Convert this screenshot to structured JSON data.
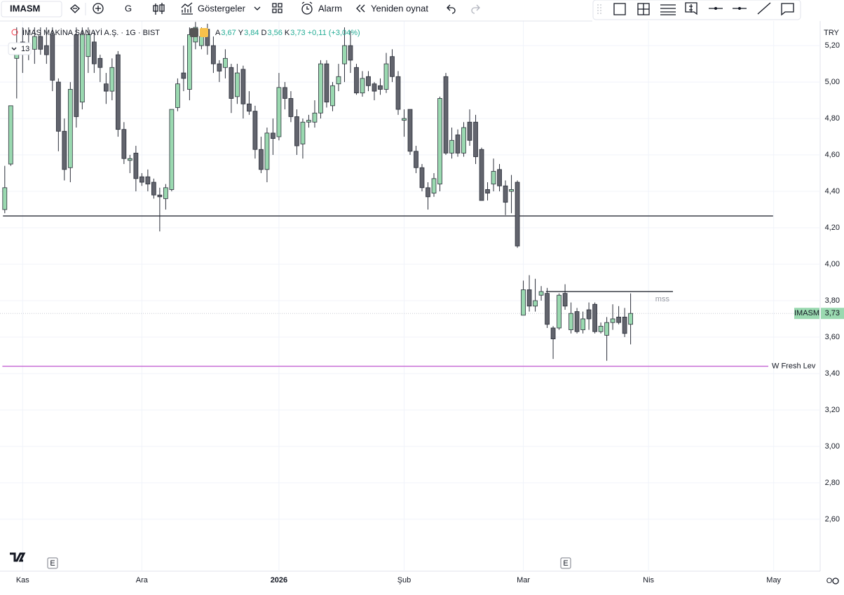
{
  "toolbar": {
    "symbol": "IMASM",
    "interval": "G",
    "indicators": "Göstergeler",
    "alarm": "Alarm",
    "replay": "Yeniden oynat"
  },
  "legend": {
    "title": "İMAŞ MAKİNA SANAYİ A.Ş. · 1G · BIST",
    "items": [
      {
        "key": "A",
        "value": "3,67"
      },
      {
        "key": "Y",
        "value": "3,84"
      },
      {
        "key": "D",
        "value": "3,56"
      },
      {
        "key": "K",
        "value": "3,73"
      }
    ],
    "change": "+0,11 (+3,04%)",
    "badge": "13"
  },
  "currency": "TRY",
  "events": [
    "E",
    "E"
  ],
  "scale_button": "O",
  "chart_data": {
    "type": "candlestick",
    "up_color": "#9ad9b0",
    "down_color": "#62646d",
    "border_color": "#2a2e39",
    "open": [
      4.3,
      4.55,
      5.13,
      5.22,
      5.2,
      5.18,
      5.25,
      5.2,
      5.26,
      5.0,
      4.73,
      4.53,
      5.26,
      4.89,
      5.14,
      5.22,
      5.13,
      4.99,
      4.95,
      5.15,
      4.74,
      4.57,
      4.61,
      4.48,
      4.48,
      4.45,
      4.38,
      4.36,
      4.41,
      4.86,
      5.05,
      4.96,
      5.22,
      5.2,
      5.29,
      5.2,
      5.1,
      5.08,
      5.08,
      4.92,
      5.07,
      4.88,
      4.84,
      4.63,
      4.52,
      4.72,
      4.7,
      4.97,
      4.91,
      4.81,
      4.66,
      4.78,
      4.78,
      4.83,
      5.1,
      4.87,
      4.99,
      5.1,
      5.2,
      5.08,
      4.94,
      5.03,
      4.99,
      4.98,
      4.96,
      5.14,
      5.03,
      4.79,
      4.85,
      4.62,
      4.53,
      4.42,
      4.39,
      4.44,
      5.03,
      4.61,
      4.71,
      4.61,
      4.78,
      4.78,
      4.63,
      4.41,
      4.44,
      4.52,
      4.43,
      4.4,
      4.45,
      3.72,
      3.86,
      3.77,
      3.83,
      3.84,
      3.65,
      3.65,
      3.84,
      3.64,
      3.74,
      3.64,
      3.75,
      3.78,
      3.63,
      3.61,
      3.68,
      3.71,
      3.71,
      3.67
    ],
    "high": [
      4.54,
      4.87,
      5.3,
      5.3,
      5.3,
      5.3,
      5.3,
      5.3,
      5.3,
      5.02,
      4.8,
      5.0,
      5.3,
      5.3,
      5.3,
      5.28,
      5.15,
      5.05,
      5.13,
      5.17,
      4.78,
      4.6,
      4.65,
      4.5,
      4.52,
      4.47,
      4.42,
      4.44,
      4.85,
      5.02,
      5.2,
      5.3,
      5.33,
      5.3,
      5.32,
      5.25,
      5.12,
      5.18,
      5.1,
      5.1,
      5.09,
      4.95,
      4.87,
      4.7,
      4.75,
      4.8,
      5.05,
      5.0,
      4.95,
      4.85,
      4.8,
      4.82,
      4.9,
      5.12,
      5.12,
      5.0,
      5.1,
      5.3,
      5.28,
      5.1,
      5.06,
      5.06,
      5.0,
      5.02,
      5.16,
      5.18,
      5.06,
      4.85,
      4.85,
      4.65,
      4.55,
      4.45,
      4.5,
      4.92,
      5.05,
      4.75,
      4.74,
      4.78,
      4.85,
      4.82,
      4.64,
      4.45,
      4.58,
      4.55,
      4.46,
      4.49,
      4.46,
      3.91,
      3.94,
      3.92,
      3.88,
      3.87,
      3.66,
      3.84,
      3.89,
      3.79,
      3.76,
      3.74,
      3.79,
      3.79,
      3.68,
      3.71,
      3.78,
      3.77,
      3.76,
      3.84
    ],
    "low": [
      4.28,
      4.54,
      4.91,
      5.05,
      5.12,
      5.1,
      5.15,
      5.1,
      4.95,
      4.62,
      4.46,
      4.45,
      4.75,
      4.85,
      5.05,
      5.05,
      5.0,
      4.88,
      4.9,
      4.7,
      4.55,
      4.5,
      4.4,
      4.43,
      4.4,
      4.36,
      4.18,
      4.3,
      4.4,
      4.84,
      4.95,
      4.9,
      5.18,
      5.18,
      5.15,
      5.05,
      5.0,
      5.02,
      4.83,
      4.88,
      4.8,
      4.82,
      4.58,
      4.5,
      4.45,
      4.6,
      4.68,
      4.85,
      4.78,
      4.6,
      4.58,
      4.75,
      4.75,
      4.8,
      4.86,
      4.84,
      4.95,
      5.0,
      5.05,
      4.93,
      4.92,
      4.95,
      4.9,
      4.93,
      4.94,
      5.0,
      4.82,
      4.7,
      4.6,
      4.5,
      4.4,
      4.3,
      4.37,
      4.4,
      4.6,
      4.58,
      4.59,
      4.59,
      4.65,
      4.55,
      4.35,
      4.35,
      4.4,
      4.4,
      4.27,
      4.28,
      4.09,
      3.72,
      3.74,
      3.74,
      3.8,
      3.65,
      3.48,
      3.64,
      3.75,
      3.62,
      3.62,
      3.62,
      3.64,
      3.62,
      3.62,
      3.47,
      3.64,
      3.67,
      3.6,
      3.56
    ],
    "close": [
      4.42,
      4.87,
      5.19,
      5.15,
      5.18,
      5.25,
      5.18,
      5.15,
      5.01,
      4.73,
      4.52,
      4.96,
      4.81,
      5.26,
      5.26,
      5.1,
      5.08,
      4.95,
      5.08,
      4.74,
      4.58,
      4.58,
      4.47,
      4.45,
      4.44,
      4.38,
      4.37,
      4.42,
      4.85,
      4.99,
      5.02,
      5.26,
      5.3,
      5.25,
      5.2,
      5.1,
      5.06,
      5.13,
      4.91,
      5.05,
      4.88,
      4.84,
      4.63,
      4.52,
      4.72,
      4.69,
      4.97,
      4.91,
      4.81,
      4.65,
      4.78,
      4.79,
      4.83,
      5.1,
      4.89,
      4.98,
      5.03,
      5.2,
      5.12,
      4.94,
      5.02,
      4.98,
      4.95,
      4.96,
      5.1,
      5.03,
      4.85,
      4.8,
      4.62,
      4.53,
      4.42,
      4.37,
      4.47,
      4.91,
      4.61,
      4.68,
      4.61,
      4.75,
      4.68,
      4.59,
      4.35,
      4.39,
      4.51,
      4.43,
      4.34,
      4.41,
      4.1,
      3.86,
      3.77,
      3.8,
      3.85,
      3.67,
      3.59,
      3.83,
      3.77,
      3.73,
      3.63,
      3.7,
      3.7,
      3.63,
      3.66,
      3.68,
      3.7,
      3.68,
      3.62,
      3.73
    ],
    "xlim": [
      -0.8,
      136.8
    ],
    "xticks": [
      {
        "value": 3,
        "label": "Kas"
      },
      {
        "value": 23,
        "label": "Ara"
      },
      {
        "value": 46,
        "label": "2026"
      },
      {
        "value": 67,
        "label": "Şub"
      },
      {
        "value": 87,
        "label": "Mar"
      },
      {
        "value": 108,
        "label": "Nis"
      },
      {
        "value": 129,
        "label": "May"
      }
    ],
    "ylim": [
      2.315,
      5.335
    ],
    "yticks": [
      {
        "value": 2.6,
        "label": "2,60"
      },
      {
        "value": 2.8,
        "label": "2,80"
      },
      {
        "value": 3.0,
        "label": "3,00"
      },
      {
        "value": 3.2,
        "label": "3,20"
      },
      {
        "value": 3.4,
        "label": "3,40"
      },
      {
        "value": 3.6,
        "label": "3,60"
      },
      {
        "value": 3.8,
        "label": "3,80"
      },
      {
        "value": 4.0,
        "label": "4,00"
      },
      {
        "value": 4.2,
        "label": "4,20"
      },
      {
        "value": 4.4,
        "label": "4,40"
      },
      {
        "value": 4.6,
        "label": "4,60"
      },
      {
        "value": 4.8,
        "label": "4,80"
      },
      {
        "value": 5.0,
        "label": "5,00"
      },
      {
        "value": 5.2,
        "label": "5,20"
      }
    ],
    "grid": true,
    "hlines": [
      {
        "value": 4.265,
        "from": -0.3,
        "to": 128.9,
        "color": "#131722"
      },
      {
        "value": 3.85,
        "from": 90.8,
        "to": 112.1,
        "color": "#131722",
        "label": "mss"
      },
      {
        "value": 3.44,
        "from": -0.4,
        "to": 128.1,
        "color": "#c565d3",
        "label": "W Fresh Lev"
      }
    ],
    "last_price": {
      "symbol": "IMASM",
      "value": 3.73,
      "label": "3,73",
      "color": "#9ad9b0"
    }
  }
}
